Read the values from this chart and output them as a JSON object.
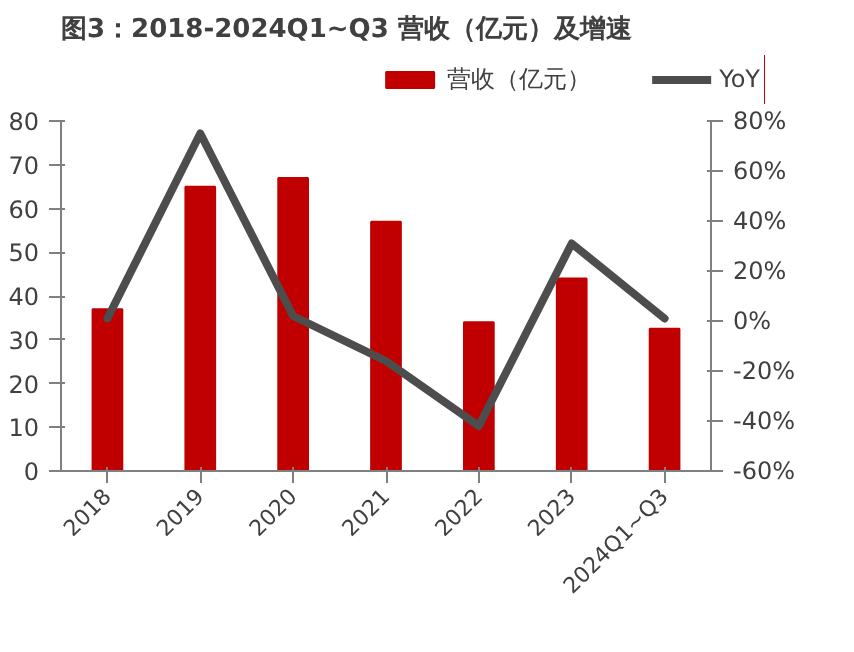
{
  "chart_data": {
    "type": "bar",
    "title": "图3：2018-2024Q1~Q3 营收（亿元）及增速",
    "categories": [
      "2018",
      "2019",
      "2020",
      "2021",
      "2022",
      "2023",
      "2024Q1~Q3"
    ],
    "series": [
      {
        "name": "营收（亿元）",
        "color": "#c00000",
        "values": [
          37,
          65,
          67,
          57,
          34,
          44,
          32.5
        ]
      },
      {
        "name": "YoY",
        "type": "line",
        "axis": "y2",
        "color": "#4d4d4d",
        "values": [
          1,
          75,
          2,
          -16,
          -42,
          31,
          1
        ]
      }
    ],
    "ylim": [
      0,
      80
    ],
    "yticks": [
      0,
      10,
      20,
      30,
      40,
      50,
      60,
      70,
      80
    ],
    "y2lim": [
      -60,
      80
    ],
    "y2ticks": [
      {
        "value": -60,
        "label": "-60%"
      },
      {
        "value": -40,
        "label": "-40%"
      },
      {
        "value": -20,
        "label": "-20%"
      },
      {
        "value": 0,
        "label": "0%"
      },
      {
        "value": 20,
        "label": "20%"
      },
      {
        "value": 40,
        "label": "40%"
      },
      {
        "value": 60,
        "label": "60%"
      },
      {
        "value": 80,
        "label": "80%"
      }
    ],
    "grid": false,
    "legend": "top",
    "marker": "none",
    "line_style": "solid"
  }
}
